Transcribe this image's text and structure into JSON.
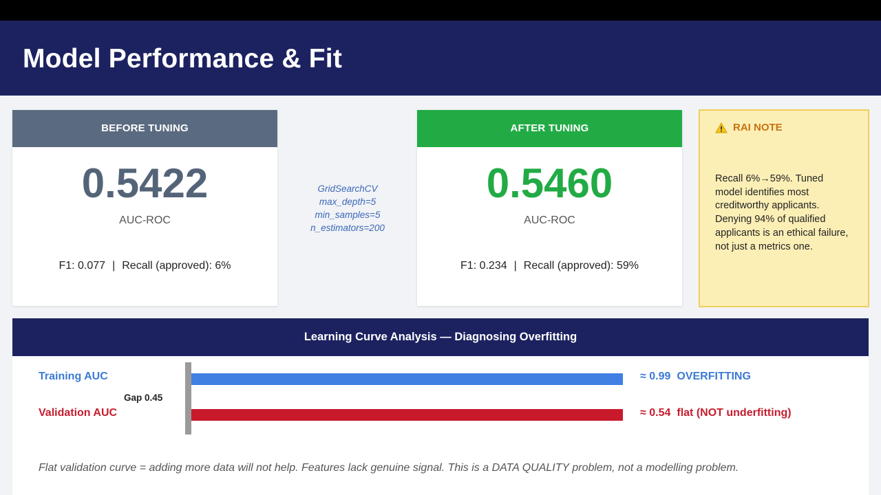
{
  "slide": {
    "title": "Model Performance & Fit"
  },
  "before": {
    "heading": "BEFORE TUNING",
    "value": "0.5422",
    "metric": "AUC-ROC",
    "f1": "F1: 0.077",
    "separator": "|",
    "recall": "Recall (approved): 6%"
  },
  "tuning": {
    "lines": [
      "GridSearchCV",
      "max_depth=5",
      "min_samples=5",
      "n_estimators=200"
    ]
  },
  "after": {
    "heading": "AFTER TUNING",
    "value": "0.5460",
    "metric": "AUC-ROC",
    "f1": "F1: 0.234",
    "separator": "|",
    "recall": "Recall (approved): 59%"
  },
  "rai": {
    "heading": "RAI NOTE",
    "icon": "warning-icon",
    "text": "Recall 6%→59%. Tuned model identifies most creditworthy applicants. Denying 94% of qualified applicants is an ethical failure, not just a metrics one."
  },
  "learning_curve": {
    "title": "Learning Curve Analysis — Diagnosing Overfitting",
    "training": {
      "label": "Training AUC",
      "value": 0.99,
      "value_text": "≈ 0.99",
      "status": "OVERFITTING",
      "color": "#3f80e2"
    },
    "validation": {
      "label": "Validation AUC",
      "value": 0.54,
      "value_text": "≈ 0.54",
      "status": "flat (NOT underfitting)",
      "color": "#c81a2b"
    },
    "gap_label": "Gap 0.45",
    "footnote": "Flat validation curve = adding more data will not help. Features lack genuine signal. This is a DATA QUALITY problem, not a modelling problem."
  },
  "colors": {
    "header_bg": "#1c2260",
    "before_accent": "#5a6a80",
    "after_accent": "#22ab45",
    "rai_bg": "#fcefb6"
  }
}
